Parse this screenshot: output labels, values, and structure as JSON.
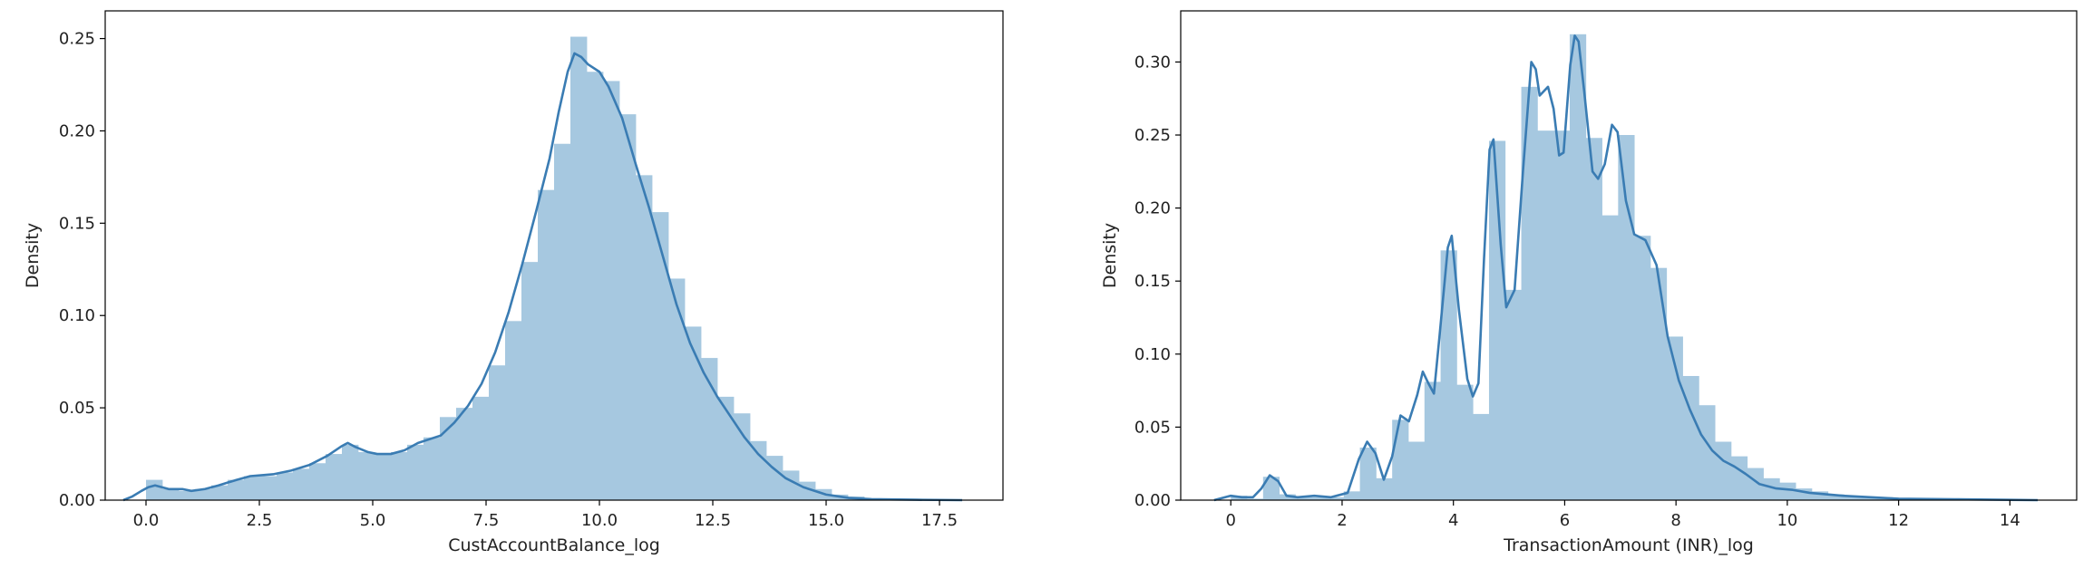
{
  "chart_data": [
    {
      "type": "histogram",
      "xlabel": "CustAccountBalance_log",
      "ylabel": "Density",
      "xlim": [
        -0.9,
        18.9
      ],
      "ylim": [
        0,
        0.265
      ],
      "xticks": [
        "0.0",
        "2.5",
        "5.0",
        "7.5",
        "10.0",
        "12.5",
        "15.0",
        "17.5"
      ],
      "xtick_values": [
        0,
        2.5,
        5,
        7.5,
        10,
        12.5,
        15,
        17.5
      ],
      "yticks": [
        "0.00",
        "0.05",
        "0.10",
        "0.15",
        "0.20",
        "0.25"
      ],
      "ytick_values": [
        0,
        0.05,
        0.1,
        0.15,
        0.2,
        0.25
      ],
      "hist_color": "#a6c8e0",
      "kde_color": "#3a7cb3",
      "bins": [
        [
          0.0,
          0.36,
          0.011
        ],
        [
          0.36,
          0.72,
          0.006
        ],
        [
          0.72,
          1.08,
          0.005
        ],
        [
          1.08,
          1.44,
          0.006
        ],
        [
          1.44,
          1.8,
          0.008
        ],
        [
          1.8,
          2.16,
          0.011
        ],
        [
          2.16,
          2.52,
          0.013
        ],
        [
          2.52,
          2.88,
          0.013
        ],
        [
          2.88,
          3.24,
          0.015
        ],
        [
          3.24,
          3.6,
          0.017
        ],
        [
          3.6,
          3.96,
          0.02
        ],
        [
          3.96,
          4.32,
          0.025
        ],
        [
          4.32,
          4.68,
          0.03
        ],
        [
          4.68,
          5.04,
          0.026
        ],
        [
          5.04,
          5.4,
          0.025
        ],
        [
          5.4,
          5.76,
          0.026
        ],
        [
          5.76,
          6.12,
          0.03
        ],
        [
          6.12,
          6.48,
          0.034
        ],
        [
          6.48,
          6.84,
          0.045
        ],
        [
          6.84,
          7.2,
          0.05
        ],
        [
          7.2,
          7.56,
          0.056
        ],
        [
          7.56,
          7.92,
          0.073
        ],
        [
          7.92,
          8.28,
          0.097
        ],
        [
          8.28,
          8.64,
          0.129
        ],
        [
          8.64,
          9.0,
          0.168
        ],
        [
          9.0,
          9.36,
          0.193
        ],
        [
          9.36,
          9.72,
          0.251
        ],
        [
          9.72,
          10.08,
          0.232
        ],
        [
          10.08,
          10.44,
          0.227
        ],
        [
          10.44,
          10.8,
          0.209
        ],
        [
          10.8,
          11.16,
          0.176
        ],
        [
          11.16,
          11.52,
          0.156
        ],
        [
          11.52,
          11.88,
          0.12
        ],
        [
          11.88,
          12.24,
          0.094
        ],
        [
          12.24,
          12.6,
          0.077
        ],
        [
          12.6,
          12.96,
          0.056
        ],
        [
          12.96,
          13.32,
          0.047
        ],
        [
          13.32,
          13.68,
          0.032
        ],
        [
          13.68,
          14.04,
          0.024
        ],
        [
          14.04,
          14.4,
          0.016
        ],
        [
          14.4,
          14.76,
          0.01
        ],
        [
          14.76,
          15.12,
          0.006
        ],
        [
          15.12,
          15.48,
          0.003
        ],
        [
          15.48,
          15.84,
          0.002
        ],
        [
          15.84,
          16.2,
          0.001
        ],
        [
          16.2,
          16.56,
          0.0008
        ],
        [
          16.56,
          16.92,
          0.0005
        ],
        [
          16.92,
          17.28,
          0.0003
        ],
        [
          17.28,
          17.64,
          0.0002
        ],
        [
          17.64,
          18.0,
          0.0001
        ]
      ],
      "kde": [
        [
          -0.5,
          0.0
        ],
        [
          -0.3,
          0.002
        ],
        [
          -0.1,
          0.005
        ],
        [
          0.05,
          0.007
        ],
        [
          0.2,
          0.008
        ],
        [
          0.5,
          0.006
        ],
        [
          0.8,
          0.006
        ],
        [
          1.0,
          0.005
        ],
        [
          1.3,
          0.006
        ],
        [
          1.6,
          0.008
        ],
        [
          2.0,
          0.011
        ],
        [
          2.3,
          0.013
        ],
        [
          2.8,
          0.014
        ],
        [
          3.2,
          0.016
        ],
        [
          3.6,
          0.019
        ],
        [
          4.0,
          0.024
        ],
        [
          4.3,
          0.029
        ],
        [
          4.45,
          0.031
        ],
        [
          4.6,
          0.029
        ],
        [
          4.9,
          0.026
        ],
        [
          5.1,
          0.025
        ],
        [
          5.4,
          0.025
        ],
        [
          5.7,
          0.027
        ],
        [
          6.0,
          0.031
        ],
        [
          6.5,
          0.035
        ],
        [
          6.8,
          0.042
        ],
        [
          7.1,
          0.051
        ],
        [
          7.4,
          0.063
        ],
        [
          7.7,
          0.08
        ],
        [
          8.0,
          0.102
        ],
        [
          8.3,
          0.128
        ],
        [
          8.6,
          0.156
        ],
        [
          8.9,
          0.185
        ],
        [
          9.1,
          0.21
        ],
        [
          9.3,
          0.232
        ],
        [
          9.45,
          0.242
        ],
        [
          9.6,
          0.24
        ],
        [
          9.75,
          0.236
        ],
        [
          10.0,
          0.232
        ],
        [
          10.2,
          0.224
        ],
        [
          10.5,
          0.207
        ],
        [
          10.8,
          0.182
        ],
        [
          11.1,
          0.158
        ],
        [
          11.4,
          0.132
        ],
        [
          11.7,
          0.106
        ],
        [
          12.0,
          0.085
        ],
        [
          12.3,
          0.069
        ],
        [
          12.6,
          0.056
        ],
        [
          12.9,
          0.045
        ],
        [
          13.2,
          0.034
        ],
        [
          13.5,
          0.025
        ],
        [
          13.8,
          0.018
        ],
        [
          14.1,
          0.012
        ],
        [
          14.5,
          0.007
        ],
        [
          15.0,
          0.003
        ],
        [
          15.5,
          0.0012
        ],
        [
          16.0,
          0.0005
        ],
        [
          17.0,
          0.0002
        ],
        [
          18.0,
          0.0
        ]
      ]
    },
    {
      "type": "histogram",
      "xlabel": "TransactionAmount (INR)_log",
      "ylabel": "Density",
      "xlim": [
        -0.9,
        15.2
      ],
      "ylim": [
        0,
        0.335
      ],
      "xticks": [
        "0",
        "2",
        "4",
        "6",
        "8",
        "10",
        "12",
        "14"
      ],
      "xtick_values": [
        0,
        2,
        4,
        6,
        8,
        10,
        12,
        14
      ],
      "yticks": [
        "0.00",
        "0.05",
        "0.10",
        "0.15",
        "0.20",
        "0.25",
        "0.30"
      ],
      "ytick_values": [
        0,
        0.05,
        0.1,
        0.15,
        0.2,
        0.25,
        0.3
      ],
      "hist_color": "#a6c8e0",
      "kde_color": "#3a7cb3",
      "bins": [
        [
          0.0,
          0.29,
          0.003
        ],
        [
          0.29,
          0.58,
          0.001
        ],
        [
          0.58,
          0.87,
          0.016
        ],
        [
          0.87,
          1.16,
          0.004
        ],
        [
          1.16,
          1.45,
          0.002
        ],
        [
          1.45,
          1.74,
          0.002
        ],
        [
          1.74,
          2.03,
          0.002
        ],
        [
          2.03,
          2.32,
          0.006
        ],
        [
          2.32,
          2.61,
          0.036
        ],
        [
          2.61,
          2.9,
          0.015
        ],
        [
          2.9,
          3.19,
          0.055
        ],
        [
          3.19,
          3.48,
          0.04
        ],
        [
          3.48,
          3.77,
          0.081
        ],
        [
          3.77,
          4.06,
          0.171
        ],
        [
          4.06,
          4.35,
          0.079
        ],
        [
          4.35,
          4.64,
          0.059
        ],
        [
          4.64,
          4.93,
          0.246
        ],
        [
          4.93,
          5.22,
          0.144
        ],
        [
          5.22,
          5.51,
          0.283
        ],
        [
          5.51,
          5.8,
          0.253
        ],
        [
          5.8,
          6.09,
          0.253
        ],
        [
          6.09,
          6.38,
          0.319
        ],
        [
          6.38,
          6.67,
          0.248
        ],
        [
          6.67,
          6.96,
          0.195
        ],
        [
          6.96,
          7.25,
          0.25
        ],
        [
          7.25,
          7.54,
          0.181
        ],
        [
          7.54,
          7.83,
          0.159
        ],
        [
          7.83,
          8.12,
          0.112
        ],
        [
          8.12,
          8.41,
          0.085
        ],
        [
          8.41,
          8.7,
          0.065
        ],
        [
          8.7,
          8.99,
          0.04
        ],
        [
          8.99,
          9.28,
          0.03
        ],
        [
          9.28,
          9.57,
          0.022
        ],
        [
          9.57,
          9.86,
          0.015
        ],
        [
          9.86,
          10.15,
          0.012
        ],
        [
          10.15,
          10.44,
          0.008
        ],
        [
          10.44,
          10.73,
          0.006
        ],
        [
          10.73,
          11.02,
          0.004
        ],
        [
          11.02,
          11.31,
          0.003
        ],
        [
          11.31,
          11.6,
          0.002
        ],
        [
          11.6,
          11.89,
          0.002
        ],
        [
          11.89,
          12.18,
          0.001
        ],
        [
          12.18,
          12.47,
          0.001
        ],
        [
          12.47,
          12.76,
          0.001
        ],
        [
          12.76,
          13.05,
          0.0008
        ],
        [
          13.05,
          13.34,
          0.0005
        ],
        [
          13.34,
          13.63,
          0.0004
        ],
        [
          13.63,
          13.92,
          0.0003
        ],
        [
          13.92,
          14.21,
          0.0002
        ],
        [
          14.21,
          14.5,
          0.0002
        ]
      ],
      "kde": [
        [
          -0.3,
          0.0
        ],
        [
          -0.1,
          0.002
        ],
        [
          0.0,
          0.003
        ],
        [
          0.2,
          0.002
        ],
        [
          0.4,
          0.002
        ],
        [
          0.55,
          0.008
        ],
        [
          0.7,
          0.017
        ],
        [
          0.85,
          0.013
        ],
        [
          1.0,
          0.003
        ],
        [
          1.2,
          0.002
        ],
        [
          1.5,
          0.003
        ],
        [
          1.8,
          0.002
        ],
        [
          2.1,
          0.005
        ],
        [
          2.3,
          0.028
        ],
        [
          2.45,
          0.04
        ],
        [
          2.6,
          0.032
        ],
        [
          2.75,
          0.014
        ],
        [
          2.9,
          0.03
        ],
        [
          3.05,
          0.058
        ],
        [
          3.2,
          0.054
        ],
        [
          3.35,
          0.072
        ],
        [
          3.45,
          0.088
        ],
        [
          3.55,
          0.08
        ],
        [
          3.65,
          0.073
        ],
        [
          3.75,
          0.112
        ],
        [
          3.9,
          0.173
        ],
        [
          3.97,
          0.181
        ],
        [
          4.1,
          0.13
        ],
        [
          4.25,
          0.083
        ],
        [
          4.35,
          0.071
        ],
        [
          4.45,
          0.08
        ],
        [
          4.55,
          0.165
        ],
        [
          4.65,
          0.24
        ],
        [
          4.72,
          0.247
        ],
        [
          4.85,
          0.175
        ],
        [
          4.95,
          0.132
        ],
        [
          5.1,
          0.144
        ],
        [
          5.25,
          0.225
        ],
        [
          5.4,
          0.3
        ],
        [
          5.48,
          0.295
        ],
        [
          5.55,
          0.277
        ],
        [
          5.7,
          0.283
        ],
        [
          5.8,
          0.268
        ],
        [
          5.9,
          0.236
        ],
        [
          5.98,
          0.238
        ],
        [
          6.1,
          0.298
        ],
        [
          6.18,
          0.318
        ],
        [
          6.25,
          0.314
        ],
        [
          6.35,
          0.28
        ],
        [
          6.5,
          0.225
        ],
        [
          6.6,
          0.22
        ],
        [
          6.72,
          0.23
        ],
        [
          6.85,
          0.257
        ],
        [
          6.95,
          0.252
        ],
        [
          7.1,
          0.205
        ],
        [
          7.25,
          0.182
        ],
        [
          7.45,
          0.178
        ],
        [
          7.65,
          0.161
        ],
        [
          7.85,
          0.112
        ],
        [
          8.05,
          0.082
        ],
        [
          8.25,
          0.062
        ],
        [
          8.45,
          0.045
        ],
        [
          8.65,
          0.034
        ],
        [
          8.85,
          0.027
        ],
        [
          9.05,
          0.023
        ],
        [
          9.25,
          0.018
        ],
        [
          9.5,
          0.011
        ],
        [
          9.8,
          0.008
        ],
        [
          10.1,
          0.007
        ],
        [
          10.4,
          0.005
        ],
        [
          10.7,
          0.004
        ],
        [
          11.0,
          0.003
        ],
        [
          11.5,
          0.002
        ],
        [
          12.0,
          0.001
        ],
        [
          13.0,
          0.0006
        ],
        [
          14.0,
          0.0002
        ],
        [
          14.5,
          0.0
        ]
      ]
    }
  ]
}
